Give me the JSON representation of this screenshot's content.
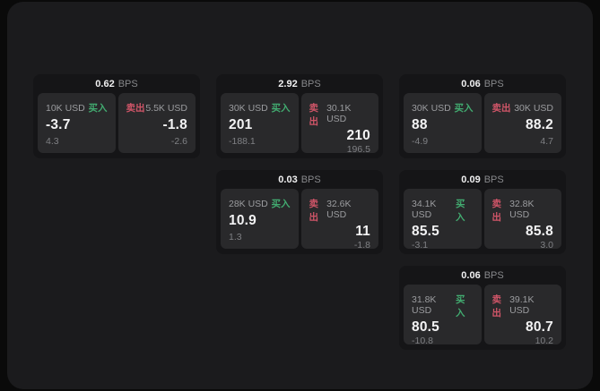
{
  "theme": {
    "buy_color": "#42ab70",
    "sell_color": "#d05568",
    "window_bg": "#1b1b1d",
    "card_bg": "#151517",
    "panel_bg": "#29292b"
  },
  "labels": {
    "buy": "买入",
    "sell": "卖出",
    "bps_unit": "BPS"
  },
  "cards": [
    {
      "bps": "0.62",
      "buy": {
        "amount": "10K USD",
        "main": "-3.7",
        "sub": "4.3"
      },
      "sell": {
        "amount": "5.5K USD",
        "main": "-1.8",
        "sub": "-2.6"
      }
    },
    {
      "bps": "2.92",
      "buy": {
        "amount": "30K USD",
        "main": "201",
        "sub": "-188.1"
      },
      "sell": {
        "amount": "30.1K USD",
        "main": "210",
        "sub": "196.5"
      }
    },
    {
      "bps": "0.06",
      "buy": {
        "amount": "30K USD",
        "main": "88",
        "sub": "-4.9"
      },
      "sell": {
        "amount": "30K USD",
        "main": "88.2",
        "sub": "4.7"
      }
    },
    {
      "bps": "0.03",
      "buy": {
        "amount": "28K USD",
        "main": "10.9",
        "sub": "1.3"
      },
      "sell": {
        "amount": "32.6K USD",
        "main": "11",
        "sub": "-1.8"
      }
    },
    {
      "bps": "0.09",
      "buy": {
        "amount": "34.1K USD",
        "main": "85.5",
        "sub": "-3.1"
      },
      "sell": {
        "amount": "32.8K USD",
        "main": "85.8",
        "sub": "3.0"
      }
    },
    {
      "bps": "0.06",
      "buy": {
        "amount": "31.8K USD",
        "main": "80.5",
        "sub": "-10.8"
      },
      "sell": {
        "amount": "39.1K USD",
        "main": "80.7",
        "sub": "10.2"
      }
    }
  ]
}
